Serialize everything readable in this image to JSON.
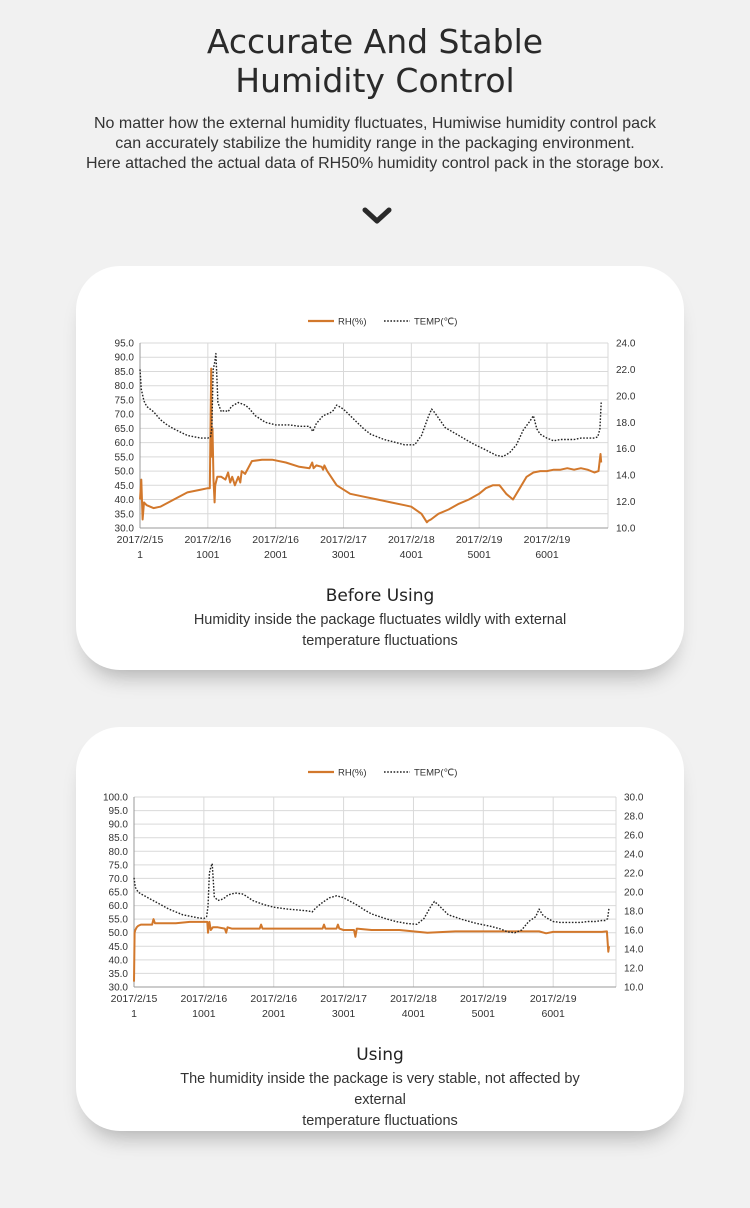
{
  "header": {
    "title_line1": "Accurate And Stable",
    "title_line2": "Humidity Control",
    "intro_line1": "No matter how the external humidity fluctuates, Humiwise humidity control pack",
    "intro_line2": "can accurately stabilize the humidity range in the packaging environment.",
    "intro_line3": "Here attached the actual data of RH50% humidity control pack in the storage box."
  },
  "icons": {
    "scroll_hint": "chevron-down-icon"
  },
  "colors": {
    "rh": "#D2782C",
    "temp": "#222222",
    "grid": "#d9d9d9",
    "background": "#f1f1f1",
    "card": "#ffffff"
  },
  "cards": [
    {
      "caption_title": "Before Using",
      "caption_line1": "Humidity inside the package fluctuates wildly with external",
      "caption_line2": "temperature fluctuations"
    },
    {
      "caption_title": "Using",
      "caption_line1": "The humidity inside the package is very stable, not affected by external",
      "caption_line2": "temperature fluctuations"
    }
  ],
  "chart_data": [
    {
      "type": "line",
      "legend": [
        "RH(%)",
        "TEMP(℃)"
      ],
      "legend_position": "top",
      "grid": true,
      "x_tick_dates": [
        "2017/2/15",
        "2017/2/16",
        "2017/2/16",
        "2017/2/17",
        "2017/2/18",
        "2017/2/19",
        "2017/2/19"
      ],
      "x_tick_numbers": [
        "1",
        "1001",
        "2001",
        "3001",
        "4001",
        "5001",
        "6001"
      ],
      "xlim": [
        1,
        6900
      ],
      "ylim": [
        30,
        95
      ],
      "y2lim": [
        10,
        24
      ],
      "y_ticks": [
        "30.0",
        "35.0",
        "40.0",
        "45.0",
        "50.0",
        "55.0",
        "60.0",
        "65.0",
        "70.0",
        "75.0",
        "80.0",
        "85.0",
        "90.0",
        "95.0"
      ],
      "y2_ticks": [
        "10.0",
        "12.0",
        "14.0",
        "16.0",
        "18.0",
        "20.0",
        "22.0",
        "24.0"
      ],
      "series": [
        {
          "name": "RH(%)",
          "axis": "left",
          "x": [
            1,
            20,
            40,
            60,
            100,
            200,
            300,
            500,
            700,
            900,
            1000,
            1030,
            1050,
            1060,
            1070,
            1085,
            1100,
            1110,
            1140,
            1200,
            1260,
            1300,
            1330,
            1360,
            1400,
            1450,
            1480,
            1500,
            1550,
            1650,
            1800,
            1950,
            2150,
            2350,
            2500,
            2540,
            2560,
            2600,
            2680,
            2700,
            2720,
            2760,
            2900,
            3100,
            3300,
            3500,
            3700,
            3900,
            4000,
            4150,
            4230,
            4250,
            4290,
            4400,
            4550,
            4700,
            4850,
            5000,
            5100,
            5200,
            5300,
            5400,
            5500,
            5600,
            5700,
            5800,
            5900,
            6000,
            6100,
            6200,
            6300,
            6400,
            6500,
            6600,
            6700,
            6760,
            6790,
            6800
          ],
          "y": [
            40,
            47,
            33,
            39,
            38,
            37,
            37.5,
            40,
            42.5,
            43.5,
            44,
            44,
            86,
            55,
            65,
            47,
            39,
            45,
            48,
            48,
            47,
            49.5,
            46,
            48,
            45,
            48,
            46,
            50,
            49,
            53.5,
            54,
            54,
            53,
            51.5,
            51,
            53,
            51,
            52,
            51.5,
            50.5,
            52,
            50,
            45,
            42,
            41,
            40,
            39,
            38,
            37.5,
            35,
            32,
            32.5,
            33,
            35,
            36.5,
            38.5,
            40,
            42,
            44,
            45,
            45,
            42,
            40,
            44,
            48,
            49.5,
            50,
            50,
            50.5,
            50.5,
            51,
            50.5,
            51,
            50.5,
            49.5,
            50,
            56,
            53
          ]
        },
        {
          "name": "TEMP(℃)",
          "axis": "right",
          "x": [
            1,
            20,
            60,
            100,
            150,
            200,
            300,
            400,
            500,
            700,
            900,
            1000,
            1040,
            1060,
            1080,
            1100,
            1120,
            1150,
            1200,
            1250,
            1300,
            1350,
            1450,
            1550,
            1600,
            1700,
            1850,
            2000,
            2200,
            2350,
            2500,
            2550,
            2600,
            2700,
            2800,
            2850,
            2900,
            3000,
            3100,
            3200,
            3300,
            3400,
            3600,
            3750,
            3900,
            4050,
            4150,
            4250,
            4300,
            4350,
            4500,
            4700,
            4900,
            5100,
            5250,
            5350,
            5450,
            5550,
            5650,
            5750,
            5800,
            5850,
            5900,
            6000,
            6100,
            6200,
            6300,
            6400,
            6500,
            6600,
            6700,
            6750,
            6780,
            6800
          ],
          "y": [
            22,
            20.5,
            19.6,
            19.2,
            19,
            18.8,
            18.2,
            17.8,
            17.5,
            17,
            16.8,
            16.8,
            16.9,
            17.5,
            22,
            22.5,
            23.2,
            19.5,
            18.8,
            18.9,
            18.8,
            19.2,
            19.5,
            19.3,
            19.1,
            18.5,
            18,
            17.8,
            17.8,
            17.7,
            17.7,
            17.3,
            17.9,
            18.5,
            18.7,
            18.9,
            19.3,
            19,
            18.5,
            18,
            17.5,
            17.1,
            16.7,
            16.5,
            16.3,
            16.3,
            17,
            18.4,
            19,
            18.7,
            17.6,
            17,
            16.4,
            15.9,
            15.5,
            15.4,
            15.7,
            16.3,
            17.4,
            18.1,
            18.5,
            17.5,
            17.1,
            16.8,
            16.6,
            16.7,
            16.7,
            16.7,
            16.8,
            16.8,
            16.8,
            16.9,
            17.5,
            19.5
          ]
        }
      ]
    },
    {
      "type": "line",
      "legend": [
        "RH(%)",
        "TEMP(℃)"
      ],
      "legend_position": "top",
      "grid": true,
      "x_tick_dates": [
        "2017/2/15",
        "2017/2/16",
        "2017/2/16",
        "2017/2/17",
        "2017/2/18",
        "2017/2/19",
        "2017/2/19"
      ],
      "x_tick_numbers": [
        "1",
        "1001",
        "2001",
        "3001",
        "4001",
        "5001",
        "6001"
      ],
      "xlim": [
        1,
        6900
      ],
      "ylim": [
        30,
        100
      ],
      "y2lim": [
        10,
        30
      ],
      "y_ticks": [
        "30.0",
        "35.0",
        "40.0",
        "45.0",
        "50.0",
        "55.0",
        "60.0",
        "65.0",
        "70.0",
        "75.0",
        "80.0",
        "85.0",
        "90.0",
        "95.0",
        "100.0"
      ],
      "y2_ticks": [
        "10.0",
        "12.0",
        "14.0",
        "16.0",
        "18.0",
        "20.0",
        "22.0",
        "24.0",
        "26.0",
        "28.0",
        "30.0"
      ],
      "series": [
        {
          "name": "RH(%)",
          "axis": "left",
          "x": [
            1,
            10,
            20,
            40,
            60,
            100,
            150,
            200,
            260,
            280,
            300,
            400,
            600,
            800,
            1000,
            1030,
            1050,
            1060,
            1080,
            1100,
            1130,
            1200,
            1300,
            1320,
            1340,
            1400,
            1600,
            1800,
            1820,
            1840,
            2000,
            2500,
            2700,
            2720,
            2740,
            2900,
            2920,
            2940,
            3000,
            3100,
            3150,
            3170,
            3190,
            3400,
            3800,
            4200,
            4600,
            5000,
            5500,
            5800,
            5900,
            6000,
            6400,
            6700,
            6770,
            6790,
            6800
          ],
          "y": [
            32,
            50,
            51,
            52,
            52.5,
            53,
            53,
            53,
            53,
            55,
            53.5,
            53.5,
            53.5,
            54,
            54,
            54,
            54,
            50,
            54,
            51,
            52,
            52,
            51.5,
            50,
            52,
            51.5,
            51.5,
            51.5,
            53,
            51.5,
            51.5,
            51.5,
            51.5,
            53,
            51.5,
            51.5,
            53,
            51.5,
            51,
            51,
            51,
            48.5,
            51.5,
            51,
            51,
            50,
            50.5,
            50.5,
            50.5,
            50.5,
            49.8,
            50.3,
            50.3,
            50.3,
            50.5,
            43,
            45
          ]
        },
        {
          "name": "TEMP(℃)",
          "axis": "right",
          "x": [
            1,
            20,
            60,
            100,
            150,
            200,
            300,
            400,
            500,
            700,
            900,
            1000,
            1040,
            1060,
            1080,
            1100,
            1120,
            1150,
            1200,
            1250,
            1300,
            1350,
            1450,
            1550,
            1600,
            1700,
            1850,
            2000,
            2200,
            2350,
            2500,
            2550,
            2600,
            2700,
            2800,
            2850,
            2900,
            3000,
            3100,
            3200,
            3300,
            3400,
            3600,
            3750,
            3900,
            4050,
            4150,
            4250,
            4300,
            4350,
            4500,
            4700,
            4900,
            5100,
            5250,
            5350,
            5450,
            5550,
            5650,
            5750,
            5800,
            5850,
            5900,
            6000,
            6100,
            6200,
            6300,
            6400,
            6500,
            6600,
            6700,
            6750,
            6780,
            6800
          ],
          "y": [
            21.5,
            20.5,
            20,
            19.8,
            19.6,
            19.4,
            19,
            18.6,
            18.2,
            17.6,
            17.3,
            17.2,
            17.4,
            18.5,
            22,
            22.6,
            23,
            19.5,
            19.1,
            19.2,
            19.4,
            19.7,
            19.9,
            19.8,
            19.6,
            19.1,
            18.7,
            18.4,
            18.2,
            18.1,
            18,
            17.9,
            18.3,
            18.9,
            19.4,
            19.5,
            19.6,
            19.4,
            19.0,
            18.6,
            18.1,
            17.7,
            17.2,
            16.9,
            16.7,
            16.6,
            17.2,
            18.5,
            19.0,
            18.7,
            17.6,
            17.1,
            16.7,
            16.4,
            16.1,
            15.8,
            15.7,
            16.0,
            16.9,
            17.4,
            18.2,
            17.6,
            17.3,
            16.9,
            16.8,
            16.8,
            16.8,
            16.8,
            16.9,
            16.9,
            17.0,
            17.0,
            17.2,
            18.3
          ]
        }
      ]
    }
  ]
}
